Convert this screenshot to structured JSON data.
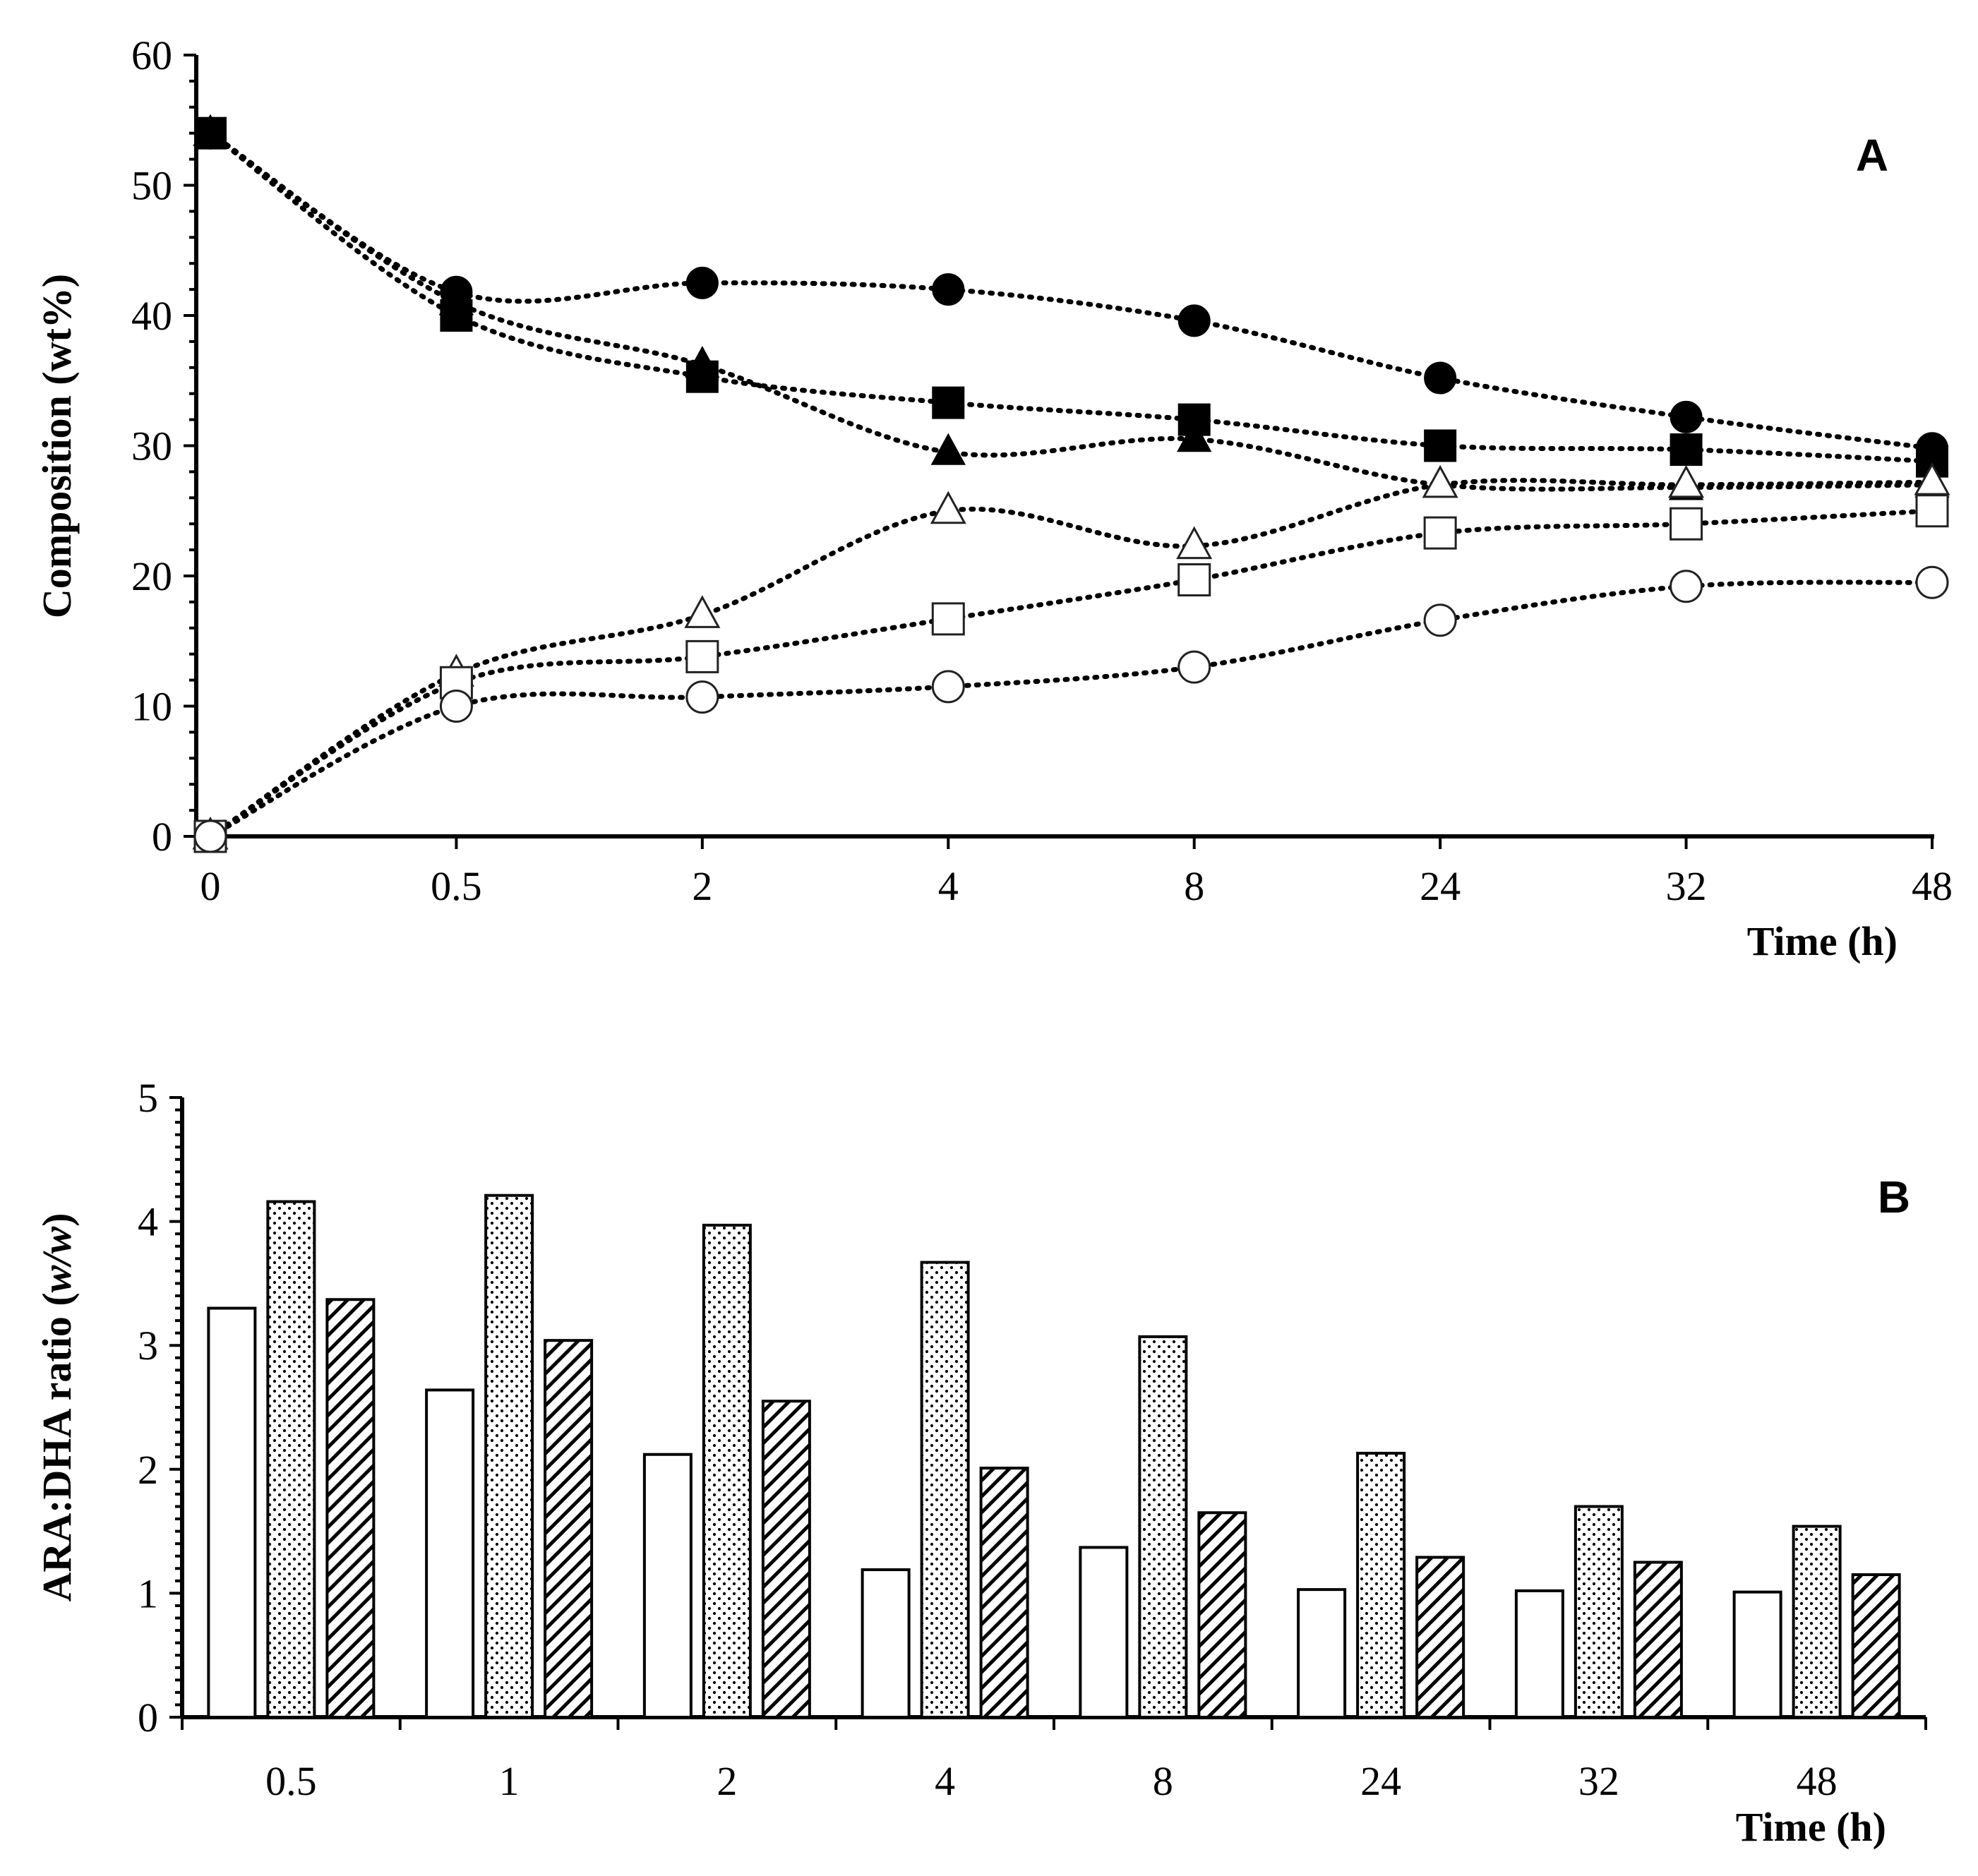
{
  "chart_data": [
    {
      "panel": "A",
      "type": "line",
      "categories": [
        "0",
        "0.5",
        "2",
        "4",
        "8",
        "24",
        "32",
        "48"
      ],
      "xlabel": "Time (h)",
      "ylabel": "Composition (wt%)",
      "ylim": [
        0,
        60
      ],
      "yticks": [
        "0",
        "10",
        "20",
        "30",
        "40",
        "50",
        "60"
      ],
      "panel_label": "A",
      "series": [
        {
          "name": "filled-circle",
          "marker": "circle",
          "fill": "#000000",
          "values": [
            54,
            41.8,
            42.5,
            42,
            39.6,
            35.2,
            32.2,
            29.8
          ]
        },
        {
          "name": "filled-square",
          "marker": "square",
          "fill": "#000000",
          "values": [
            54,
            40,
            35.3,
            33.3,
            32,
            30,
            29.7,
            28.8
          ]
        },
        {
          "name": "filled-triangle",
          "marker": "triangle",
          "fill": "#000000",
          "values": [
            54,
            41,
            36.2,
            29.5,
            30.5,
            27,
            26.8,
            27
          ]
        },
        {
          "name": "open-triangle",
          "marker": "triangle",
          "fill": "#ffffff",
          "values": [
            0,
            12.5,
            17,
            25,
            22.3,
            27,
            27,
            27.2
          ]
        },
        {
          "name": "open-square",
          "marker": "square",
          "fill": "#ffffff",
          "values": [
            0,
            11.8,
            13.8,
            16.7,
            19.7,
            23.3,
            24,
            25
          ]
        },
        {
          "name": "open-circle",
          "marker": "circle",
          "fill": "#ffffff",
          "values": [
            0,
            10,
            10.7,
            11.5,
            13,
            16.6,
            19.2,
            19.5
          ]
        }
      ]
    },
    {
      "panel": "B",
      "type": "bar",
      "categories": [
        "0.5",
        "1",
        "2",
        "4",
        "8",
        "24",
        "32",
        "48"
      ],
      "xlabel": "Time (h)",
      "ylabel_prefix": "ARA:DHA ratio (",
      "ylabel_italic": "w/w",
      "ylabel_suffix": ")",
      "ylim": [
        0,
        5
      ],
      "yticks": [
        "0",
        "1",
        "2",
        "3",
        "4",
        "5"
      ],
      "panel_label": "B",
      "series": [
        {
          "name": "open",
          "pattern": "none",
          "values": [
            3.3,
            2.64,
            2.12,
            1.19,
            1.37,
            1.03,
            1.02,
            1.01
          ]
        },
        {
          "name": "dotted",
          "pattern": "dots",
          "values": [
            4.16,
            4.21,
            3.97,
            3.67,
            3.07,
            2.13,
            1.7,
            1.54
          ]
        },
        {
          "name": "hatched",
          "pattern": "hatch",
          "values": [
            3.37,
            3.04,
            2.55,
            2.01,
            1.65,
            1.29,
            1.25,
            1.15
          ]
        }
      ]
    }
  ]
}
